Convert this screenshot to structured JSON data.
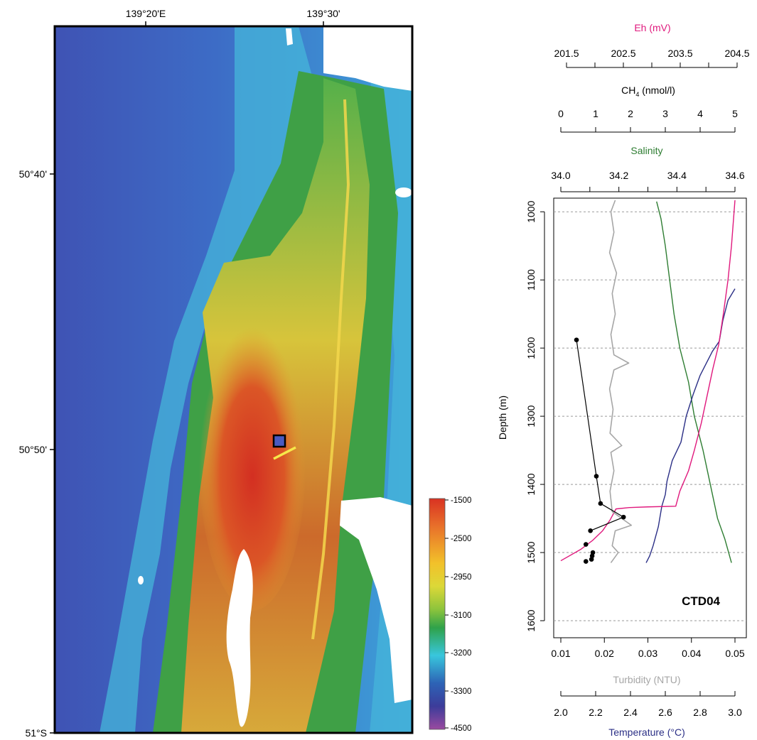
{
  "map": {
    "lon_labels": [
      "139°20'E",
      "139°30'"
    ],
    "lat_labels": [
      "50°40'",
      "50°50'",
      "51°S"
    ],
    "colorbar": {
      "labels": [
        "-1500",
        "-2500",
        "-2950",
        "-3100",
        "-3200",
        "-3300",
        "-4500"
      ],
      "colors": [
        "#d93222",
        "#e8702a",
        "#f2c12a",
        "#dcd838",
        "#8dc43c",
        "#2fa24a",
        "#38c6dd",
        "#2d63b6",
        "#3c3c9a",
        "#9a4aa0"
      ]
    }
  },
  "chart_data": {
    "type": "line",
    "station_label": "CTD04",
    "y_axis": {
      "label": "Depth (m)",
      "ticks": [
        1000,
        1100,
        1200,
        1300,
        1400,
        1500,
        1600
      ],
      "range": [
        980,
        1625
      ],
      "inverted": true,
      "grid": "dashed"
    },
    "axes": {
      "eh": {
        "label": "Eh (mV)",
        "ticks": [
          "201.5",
          "202.5",
          "203.5",
          "204.5"
        ],
        "minor_ticks": [
          202.0,
          203.0,
          204.0
        ],
        "range": [
          201.5,
          204.5
        ],
        "color": "#e0197d"
      },
      "ch4": {
        "label": "CH4 (nmol/l)",
        "label_main": "CH",
        "label_sub": "4",
        "label_tail": " (nmol/l)",
        "ticks": [
          "0",
          "1",
          "2",
          "3",
          "4",
          "5"
        ],
        "range": [
          0,
          5
        ],
        "color": "#000000"
      },
      "salinity": {
        "label": "Salinity",
        "ticks": [
          "34.0",
          "34.2",
          "34.4",
          "34.6"
        ],
        "minor_ticks": [
          34.1,
          34.3,
          34.5
        ],
        "range": [
          34.0,
          34.6
        ],
        "color": "#2e7d32"
      },
      "turbidity": {
        "label": "Turbidity (NTU)",
        "ticks": [
          "0.01",
          "0.02",
          "0.03",
          "0.04",
          "0.05"
        ],
        "range": [
          0.01,
          0.05
        ],
        "color": "#a6a6a6"
      },
      "temperature": {
        "label": "Temperature (°C)",
        "ticks": [
          "2.0",
          "2.2",
          "2.4",
          "2.6",
          "2.8",
          "3.0"
        ],
        "range": [
          2.0,
          3.0
        ],
        "color": "#2b2f86"
      }
    },
    "series": [
      {
        "key": "salinity",
        "axis": "salinity",
        "color": "#2e7d32",
        "points": [
          [
            34.33,
            985
          ],
          [
            34.345,
            1010
          ],
          [
            34.36,
            1050
          ],
          [
            34.375,
            1100
          ],
          [
            34.39,
            1150
          ],
          [
            34.41,
            1200
          ],
          [
            34.44,
            1250
          ],
          [
            34.46,
            1300
          ],
          [
            34.49,
            1350
          ],
          [
            34.515,
            1400
          ],
          [
            34.54,
            1450
          ],
          [
            34.565,
            1480
          ],
          [
            34.588,
            1515
          ]
        ]
      },
      {
        "key": "temperature",
        "axis": "temperature",
        "color": "#2b2f86",
        "points": [
          [
            3.0,
            1113
          ],
          [
            2.96,
            1130
          ],
          [
            2.93,
            1160
          ],
          [
            2.91,
            1190
          ],
          [
            2.87,
            1205
          ],
          [
            2.8,
            1240
          ],
          [
            2.76,
            1268
          ],
          [
            2.72,
            1300
          ],
          [
            2.69,
            1338
          ],
          [
            2.64,
            1365
          ],
          [
            2.61,
            1395
          ],
          [
            2.6,
            1415
          ],
          [
            2.58,
            1432
          ],
          [
            2.56,
            1462
          ],
          [
            2.53,
            1490
          ],
          [
            2.51,
            1505
          ],
          [
            2.49,
            1515
          ]
        ]
      },
      {
        "key": "eh",
        "axis": "eh",
        "color": "#e0197d",
        "points": [
          [
            204.5,
            983
          ],
          [
            204.44,
            1050
          ],
          [
            204.38,
            1100
          ],
          [
            204.3,
            1150
          ],
          [
            204.22,
            1195
          ],
          [
            204.12,
            1230
          ],
          [
            204.02,
            1270
          ],
          [
            203.92,
            1310
          ],
          [
            203.8,
            1350
          ],
          [
            203.7,
            1380
          ],
          [
            203.55,
            1410
          ],
          [
            203.48,
            1432
          ],
          [
            203.0,
            1433
          ],
          [
            202.68,
            1434
          ],
          [
            202.45,
            1436
          ],
          [
            202.35,
            1452
          ],
          [
            202.22,
            1468
          ],
          [
            202.05,
            1482
          ],
          [
            201.85,
            1495
          ],
          [
            201.5,
            1512
          ]
        ]
      },
      {
        "key": "turbidity",
        "axis": "turbidity",
        "color": "#a6a6a6",
        "points": [
          [
            0.0225,
            983
          ],
          [
            0.0215,
            1000
          ],
          [
            0.0222,
            1030
          ],
          [
            0.0212,
            1060
          ],
          [
            0.0228,
            1090
          ],
          [
            0.0218,
            1120
          ],
          [
            0.0225,
            1150
          ],
          [
            0.0215,
            1180
          ],
          [
            0.0222,
            1210
          ],
          [
            0.0256,
            1222
          ],
          [
            0.0222,
            1232
          ],
          [
            0.0212,
            1260
          ],
          [
            0.022,
            1290
          ],
          [
            0.0213,
            1325
          ],
          [
            0.024,
            1343
          ],
          [
            0.0215,
            1353
          ],
          [
            0.0222,
            1380
          ],
          [
            0.0213,
            1410
          ],
          [
            0.0218,
            1440
          ],
          [
            0.0262,
            1460
          ],
          [
            0.0225,
            1468
          ],
          [
            0.0218,
            1490
          ],
          [
            0.0232,
            1500
          ],
          [
            0.0215,
            1515
          ]
        ]
      },
      {
        "key": "ch4",
        "axis": "ch4",
        "color": "#000000",
        "points": [
          [
            0.45,
            1188
          ],
          [
            1.02,
            1388
          ],
          [
            1.14,
            1428
          ],
          [
            1.8,
            1448
          ],
          [
            0.85,
            1468
          ],
          [
            0.72,
            1488
          ],
          [
            0.92,
            1500
          ],
          [
            0.9,
            1505
          ],
          [
            0.88,
            1510
          ],
          [
            0.72,
            1513
          ]
        ]
      }
    ]
  }
}
